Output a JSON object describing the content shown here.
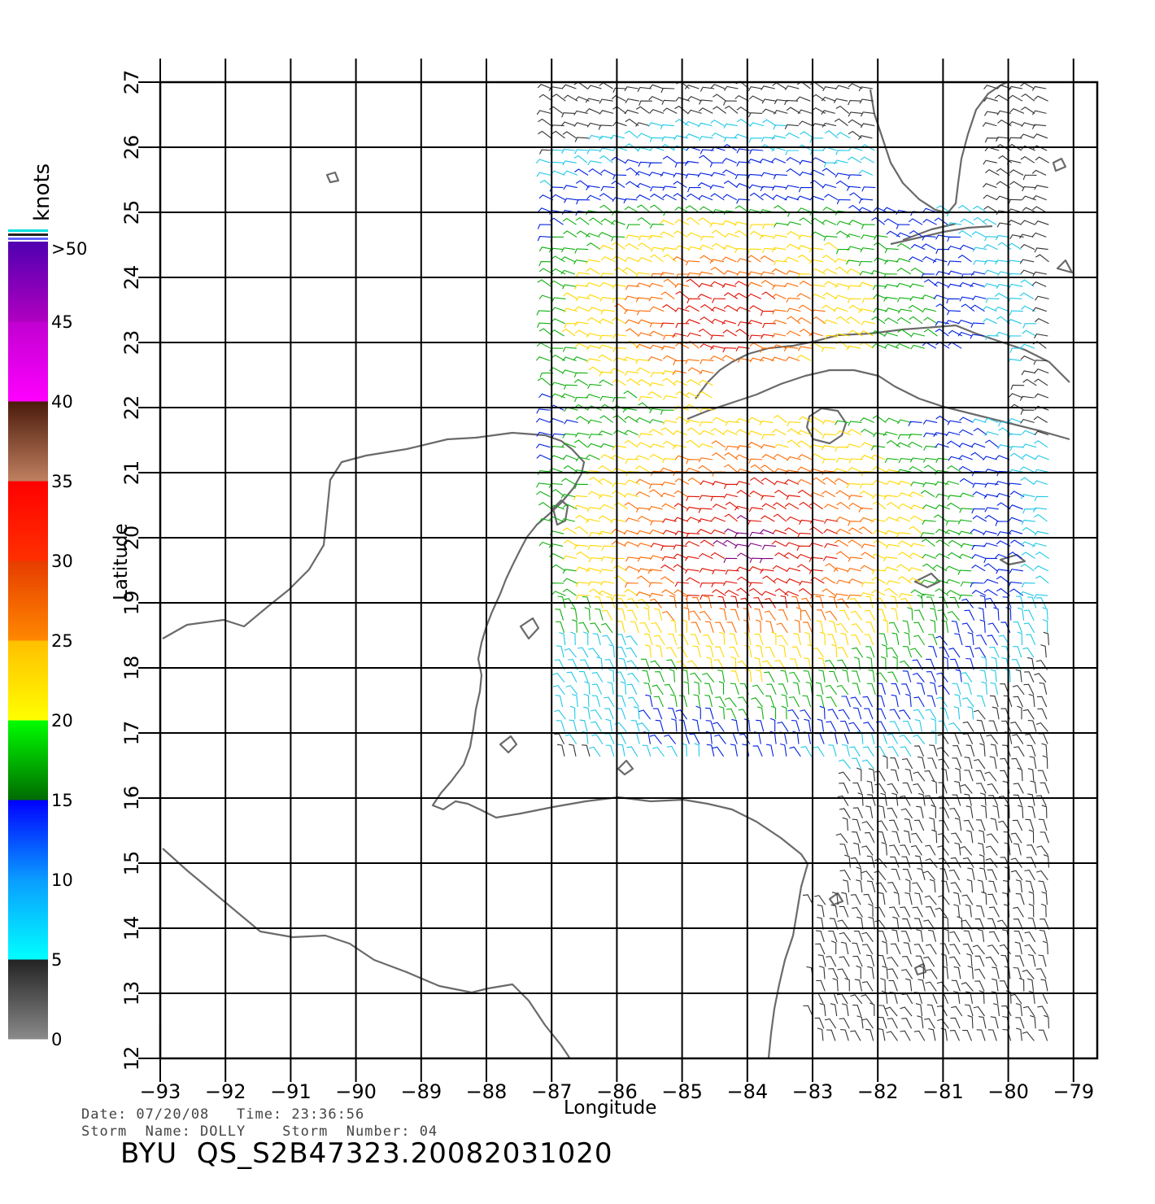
{
  "map": {
    "xlabel": "Longitude",
    "ylabel": "Latitude",
    "lon_ticks": [
      -93,
      -92,
      -91,
      -90,
      -89,
      -88,
      -87,
      -86,
      -85,
      -84,
      -83,
      -82,
      -81,
      -80,
      -79
    ],
    "lat_ticks": [
      12,
      13,
      14,
      15,
      16,
      17,
      18,
      19,
      20,
      21,
      22,
      23,
      24,
      25,
      26,
      27
    ],
    "lon_range": [
      -93,
      -79.4
    ],
    "lat_range": [
      12,
      27
    ]
  },
  "colorbar": {
    "unit": "knots",
    "labels": [
      "0",
      "5",
      "10",
      "15",
      "20",
      "25",
      "30",
      "35",
      "40",
      "45",
      ">50"
    ],
    "bands": [
      {
        "min": 0,
        "max": 5,
        "colors": [
          "#8a8a8a",
          "#222222"
        ]
      },
      {
        "min": 5,
        "max": 10,
        "colors": [
          "#00ffff",
          "#0a9cff"
        ]
      },
      {
        "min": 10,
        "max": 15,
        "colors": [
          "#0a9cff",
          "#0000ff"
        ]
      },
      {
        "min": 15,
        "max": 20,
        "colors": [
          "#006b00",
          "#00ff00"
        ]
      },
      {
        "min": 20,
        "max": 25,
        "colors": [
          "#ffff00",
          "#ffbf00"
        ]
      },
      {
        "min": 25,
        "max": 30,
        "colors": [
          "#ff8800",
          "#e63c00"
        ]
      },
      {
        "min": 30,
        "max": 35,
        "colors": [
          "#ff3000",
          "#ff0000"
        ]
      },
      {
        "min": 35,
        "max": 40,
        "colors": [
          "#c08060",
          "#4a1a0a"
        ]
      },
      {
        "min": 40,
        "max": 45,
        "colors": [
          "#ff00ff",
          "#c000d0"
        ]
      },
      {
        "min": 45,
        "max": 50,
        "colors": [
          "#b000c0",
          "#5000b0"
        ]
      }
    ]
  },
  "meta": {
    "date_line": "Date: 07/20/08   Time: 23:36:56",
    "storm_line": "Storm  Name: DOLLY    Storm  Number: 04",
    "file_id": "BYU  QS_S2B47323.20082031020"
  }
}
